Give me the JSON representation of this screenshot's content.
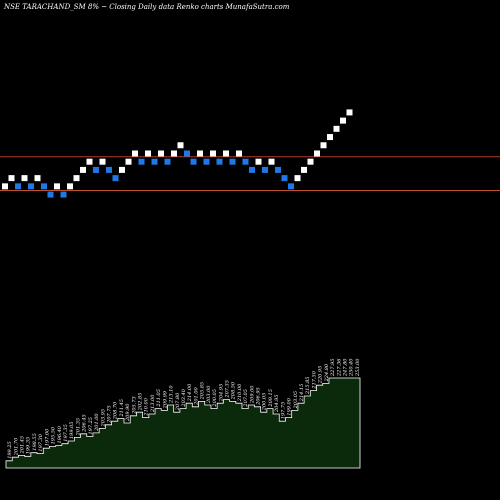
{
  "title": "NSE TARACHAND_SM 8% ~ Closing Daily data Renko charts MunafaSutra.com",
  "chart_data": {
    "type": "renko",
    "colors": {
      "background": "#000000",
      "up_brick": "#ffffff",
      "down_brick": "#1e78e6",
      "line_upper": "#b03a2e",
      "line_lower": "#c0502a",
      "volume_fill": "#0b2a0b",
      "volume_stroke": "#ffffff"
    },
    "bricks": [
      {
        "dir": "up",
        "level": 201.5
      },
      {
        "dir": "up",
        "level": 203.5
      },
      {
        "dir": "down",
        "level": 201.5
      },
      {
        "dir": "up",
        "level": 203.5
      },
      {
        "dir": "down",
        "level": 201.5
      },
      {
        "dir": "up",
        "level": 203.5
      },
      {
        "dir": "down",
        "level": 201.5
      },
      {
        "dir": "down",
        "level": 199.5
      },
      {
        "dir": "up",
        "level": 201.5
      },
      {
        "dir": "down",
        "level": 199.5
      },
      {
        "dir": "up",
        "level": 201.5
      },
      {
        "dir": "up",
        "level": 203.5
      },
      {
        "dir": "up",
        "level": 205.5
      },
      {
        "dir": "up",
        "level": 207.5
      },
      {
        "dir": "down",
        "level": 205.5
      },
      {
        "dir": "up",
        "level": 207.5
      },
      {
        "dir": "down",
        "level": 205.5
      },
      {
        "dir": "down",
        "level": 203.5
      },
      {
        "dir": "up",
        "level": 205.5
      },
      {
        "dir": "up",
        "level": 207.5
      },
      {
        "dir": "up",
        "level": 209.5
      },
      {
        "dir": "down",
        "level": 207.5
      },
      {
        "dir": "up",
        "level": 209.5
      },
      {
        "dir": "down",
        "level": 207.5
      },
      {
        "dir": "up",
        "level": 209.5
      },
      {
        "dir": "down",
        "level": 207.5
      },
      {
        "dir": "up",
        "level": 209.5
      },
      {
        "dir": "up",
        "level": 211.5
      },
      {
        "dir": "down",
        "level": 209.5
      },
      {
        "dir": "down",
        "level": 207.5
      },
      {
        "dir": "up",
        "level": 209.5
      },
      {
        "dir": "down",
        "level": 207.5
      },
      {
        "dir": "up",
        "level": 209.5
      },
      {
        "dir": "down",
        "level": 207.5
      },
      {
        "dir": "up",
        "level": 209.5
      },
      {
        "dir": "down",
        "level": 207.5
      },
      {
        "dir": "up",
        "level": 209.5
      },
      {
        "dir": "down",
        "level": 207.5
      },
      {
        "dir": "down",
        "level": 205.5
      },
      {
        "dir": "up",
        "level": 207.5
      },
      {
        "dir": "down",
        "level": 205.5
      },
      {
        "dir": "up",
        "level": 207.5
      },
      {
        "dir": "down",
        "level": 205.5
      },
      {
        "dir": "down",
        "level": 203.5
      },
      {
        "dir": "down",
        "level": 201.5
      },
      {
        "dir": "up",
        "level": 203.5
      },
      {
        "dir": "up",
        "level": 205.5
      },
      {
        "dir": "up",
        "level": 207.5
      },
      {
        "dir": "up",
        "level": 209.5
      },
      {
        "dir": "up",
        "level": 211.5
      },
      {
        "dir": "up",
        "level": 213.5
      },
      {
        "dir": "up",
        "level": 215.5
      },
      {
        "dir": "up",
        "level": 217.5
      },
      {
        "dir": "up",
        "level": 219.5
      }
    ],
    "price_range": [
      130,
      242
    ],
    "horizontal_lines": [
      {
        "price": 208.7,
        "color": "#b03a2e"
      },
      {
        "price": 200.5,
        "color": "#c0502a"
      }
    ],
    "volume_area": {
      "labels": [
        "199.25",
        "201.70",
        "201.45",
        "199.35",
        "198.55",
        "197.30",
        "197.00",
        "195.50",
        "196.40",
        "197.35",
        "199.05",
        "201.35",
        "206.45",
        "197.25",
        "201.00",
        "203.95",
        "207.75",
        "208.70",
        "211.45",
        "209.90",
        "205.73",
        "202.85",
        "210.00",
        "213.00",
        "211.05",
        "209.99",
        "213.10",
        "207.80",
        "203.40",
        "214.00",
        "201.00",
        "205.85",
        "203.00",
        "200.05",
        "204.95",
        "207.35",
        "208.50",
        "210.00",
        "207.05",
        "209.00",
        "206.95",
        "200.05",
        "209.15",
        "204.95",
        "197.75",
        "199.00",
        "203.05",
        "214.15",
        "215.85",
        "217.50",
        "220.95",
        "224.80",
        "227.95",
        "227.36",
        "247.80",
        "250.40",
        "253.00"
      ],
      "values": [
        8,
        12,
        14,
        13,
        17,
        16,
        22,
        24,
        25,
        27,
        30,
        34,
        38,
        35,
        39,
        44,
        48,
        52,
        55,
        50,
        58,
        62,
        56,
        60,
        66,
        64,
        70,
        62,
        66,
        72,
        68,
        74,
        70,
        66,
        72,
        76,
        74,
        72,
        66,
        70,
        68,
        62,
        66,
        60,
        52,
        56,
        64,
        72,
        80,
        86,
        92,
        94,
        100,
        100,
        100,
        100,
        100
      ]
    }
  }
}
